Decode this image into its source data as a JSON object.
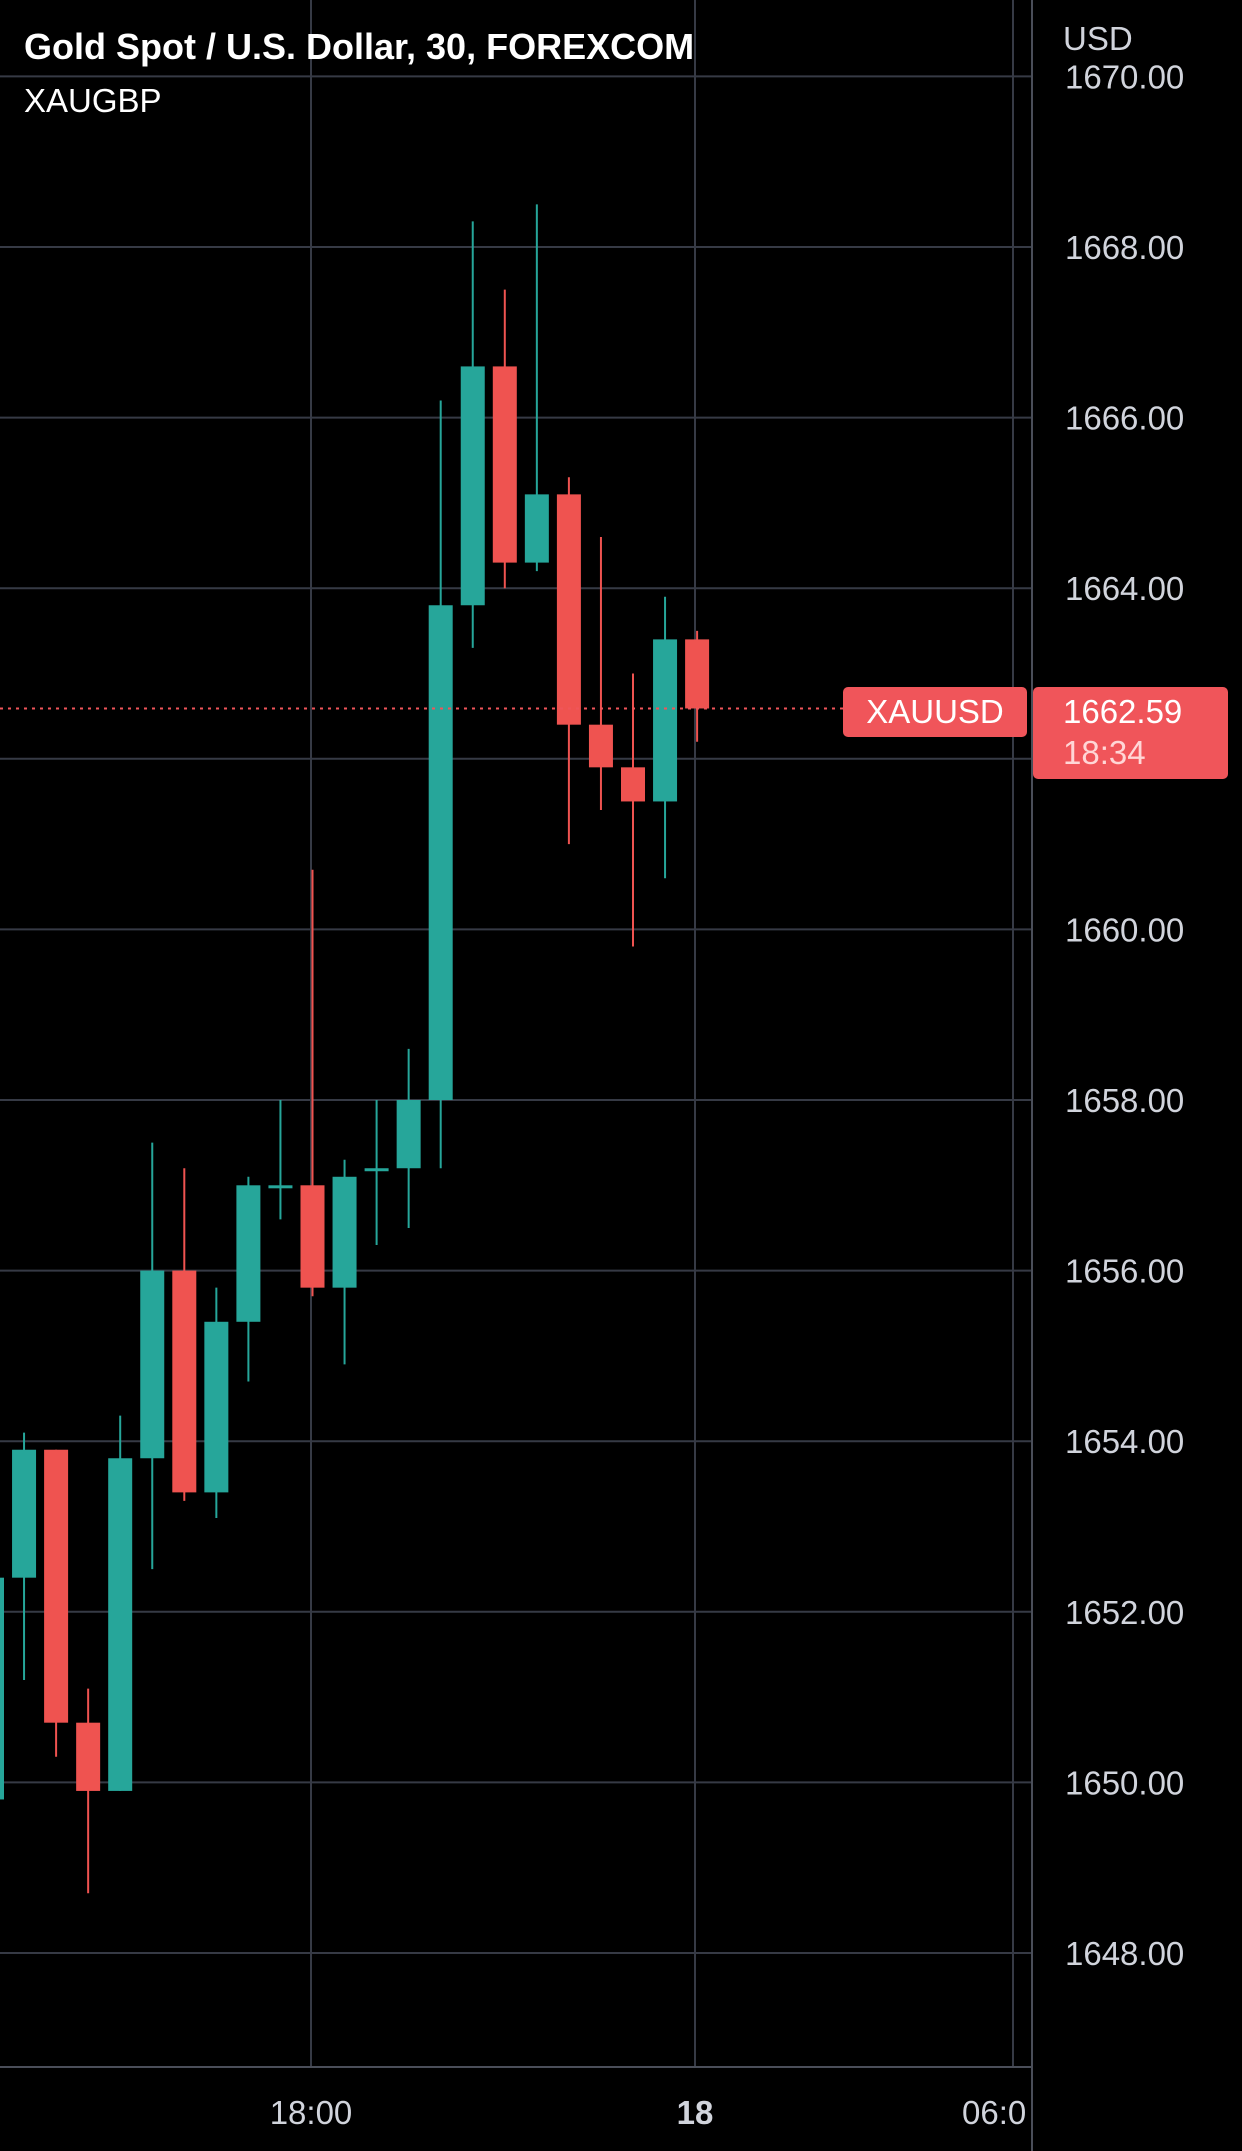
{
  "header": {
    "title": "Gold Spot / U.S. Dollar, 30, FOREXCOM",
    "compare_symbol": "XAUGBP",
    "currency": "USD"
  },
  "last_price": {
    "symbol": "XAUUSD",
    "value": "1662.59",
    "countdown": "18:34"
  },
  "colors": {
    "up": "#26a69a",
    "down": "#ef5350",
    "grid": "#363a45",
    "axis_text": "#d1d4dc",
    "price_line": "#f0555a"
  },
  "chart_data": {
    "type": "candlestick",
    "ylim": [
      1646.8,
      1670.3
    ],
    "y_ticks": [
      "1648.00",
      "1650.00",
      "1652.00",
      "1654.00",
      "1656.00",
      "1658.00",
      "1660.00",
      "1662.00",
      "1664.00",
      "1666.00",
      "1668.00",
      "1670.00"
    ],
    "x_ticks": [
      "18:00",
      "18",
      "06:0"
    ],
    "candles": [
      {
        "o": 1649.8,
        "h": 1652.4,
        "l": 1649.6,
        "c": 1652.4
      },
      {
        "o": 1652.4,
        "h": 1654.1,
        "l": 1651.2,
        "c": 1653.9
      },
      {
        "o": 1653.9,
        "h": 1653.9,
        "l": 1650.3,
        "c": 1650.7
      },
      {
        "o": 1650.7,
        "h": 1651.1,
        "l": 1648.7,
        "c": 1649.9
      },
      {
        "o": 1649.9,
        "h": 1654.3,
        "l": 1649.9,
        "c": 1653.8
      },
      {
        "o": 1653.8,
        "h": 1657.5,
        "l": 1652.5,
        "c": 1656.0
      },
      {
        "o": 1656.0,
        "h": 1657.2,
        "l": 1653.3,
        "c": 1653.4
      },
      {
        "o": 1653.4,
        "h": 1655.8,
        "l": 1653.1,
        "c": 1655.4
      },
      {
        "o": 1655.4,
        "h": 1657.1,
        "l": 1654.7,
        "c": 1657.0
      },
      {
        "o": 1657.0,
        "h": 1658.0,
        "l": 1656.6,
        "c": 1657.0
      },
      {
        "o": 1657.0,
        "h": 1660.7,
        "l": 1655.7,
        "c": 1655.8
      },
      {
        "o": 1655.8,
        "h": 1657.3,
        "l": 1654.9,
        "c": 1657.1
      },
      {
        "o": 1657.2,
        "h": 1658.0,
        "l": 1656.3,
        "c": 1657.2
      },
      {
        "o": 1657.2,
        "h": 1658.6,
        "l": 1656.5,
        "c": 1658.0
      },
      {
        "o": 1658.0,
        "h": 1666.2,
        "l": 1657.2,
        "c": 1663.8
      },
      {
        "o": 1663.8,
        "h": 1668.3,
        "l": 1663.3,
        "c": 1666.6
      },
      {
        "o": 1666.6,
        "h": 1667.5,
        "l": 1664.0,
        "c": 1664.3
      },
      {
        "o": 1664.3,
        "h": 1668.5,
        "l": 1664.2,
        "c": 1665.1
      },
      {
        "o": 1665.1,
        "h": 1665.3,
        "l": 1661.0,
        "c": 1662.4
      },
      {
        "o": 1662.4,
        "h": 1664.6,
        "l": 1661.4,
        "c": 1661.9
      },
      {
        "o": 1661.9,
        "h": 1663.0,
        "l": 1659.8,
        "c": 1661.5
      },
      {
        "o": 1661.5,
        "h": 1663.9,
        "l": 1660.6,
        "c": 1663.4
      },
      {
        "o": 1663.4,
        "h": 1663.5,
        "l": 1662.2,
        "c": 1662.59
      }
    ]
  }
}
